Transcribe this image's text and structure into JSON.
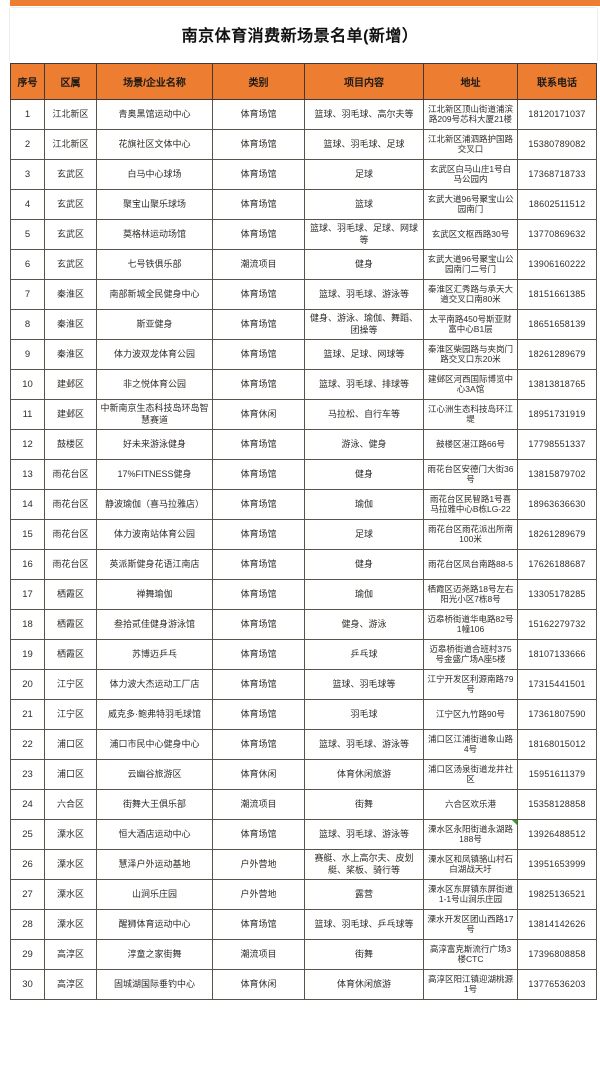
{
  "page_title": "南京体育消费新场景名单(新增）",
  "colors": {
    "header_bg": "#ED7D31",
    "border_dark": "#3f3a35",
    "border_light": "#5a534c",
    "text": "#2f2c2a",
    "marker_green": "#2e9e27"
  },
  "table": {
    "headers": [
      "序号",
      "区属",
      "场景/企业名称",
      "类别",
      "项目内容",
      "地址",
      "联系电话"
    ],
    "header_keys": [
      "no",
      "district",
      "name",
      "category",
      "content",
      "address",
      "phone"
    ],
    "green_marker_row": 25,
    "rows": [
      [
        "1",
        "江北新区",
        "青奥黑馆运动中心",
        "体育场馆",
        "篮球、羽毛球、高尔夫等",
        "江北新区顶山街道浦滨路209号芯科大厦21楼",
        "18120171037"
      ],
      [
        "2",
        "江北新区",
        "花旗社区文体中心",
        "体育场馆",
        "篮球、羽毛球、足球",
        "江北新区浦泗路护国路交叉口",
        "15380789082"
      ],
      [
        "3",
        "玄武区",
        "白马中心球场",
        "体育场馆",
        "足球",
        "玄武区白马山庄1号白马公园内",
        "17368718733"
      ],
      [
        "4",
        "玄武区",
        "聚宝山聚乐球场",
        "体育场馆",
        "篮球",
        "玄武大道96号聚宝山公园南门",
        "18602511512"
      ],
      [
        "5",
        "玄武区",
        "莫格林运动场馆",
        "体育场馆",
        "篮球、羽毛球、足球、网球等",
        "玄武区文枢西路30号",
        "13770869632"
      ],
      [
        "6",
        "玄武区",
        "七号铁俱乐部",
        "潮流项目",
        "健身",
        "玄武大道96号聚宝山公园南门二号门",
        "13906160222"
      ],
      [
        "7",
        "秦淮区",
        "南部新城全民健身中心",
        "体育场馆",
        "篮球、羽毛球、游泳等",
        "秦淮区汇秀路与承天大道交叉口南80米",
        "18151661385"
      ],
      [
        "8",
        "秦淮区",
        "斯亚健身",
        "体育场馆",
        "健身、游泳、瑜伽、舞蹈、团操等",
        "太平南路450号斯亚财富中心B1层",
        "18651658139"
      ],
      [
        "9",
        "秦淮区",
        "体力波双龙体育公园",
        "体育场馆",
        "篮球、足球、网球等",
        "秦淮区柴园路与夹岗门路交叉口东20米",
        "18261289679"
      ],
      [
        "10",
        "建邺区",
        "非之悦体育公园",
        "体育场馆",
        "篮球、羽毛球、排球等",
        "建邺区河西国际博览中心3A馆",
        "13813818765"
      ],
      [
        "11",
        "建邺区",
        "中新南京生态科技岛环岛智慧赛道",
        "体育休闲",
        "马拉松、自行车等",
        "江心洲生态科技岛环江堤",
        "18951731919"
      ],
      [
        "12",
        "鼓楼区",
        "好未来游泳健身",
        "体育场馆",
        "游泳、健身",
        "鼓楼区湛江路66号",
        "17798551337"
      ],
      [
        "13",
        "雨花台区",
        "17%FITNESS健身",
        "体育场馆",
        "健身",
        "雨花台区安德门大街36号",
        "13815879702"
      ],
      [
        "14",
        "雨花台区",
        "静波瑜伽（喜马拉雅店）",
        "体育场馆",
        "瑜伽",
        "雨花台区民智路1号喜马拉雅中心B栋LG-22",
        "18963636630"
      ],
      [
        "15",
        "雨花台区",
        "体力波南站体育公园",
        "体育场馆",
        "足球",
        "雨花台区雨花派出所南100米",
        "18261289679"
      ],
      [
        "16",
        "雨花台区",
        "英派斯健身花语江南店",
        "体育场馆",
        "健身",
        "雨花台区凤台南路88-5",
        "17626188687"
      ],
      [
        "17",
        "栖霞区",
        "禅舞瑜伽",
        "体育场馆",
        "瑜伽",
        "栖霞区迈尧路18号左右阳光小区7栋8号",
        "13305178285"
      ],
      [
        "18",
        "栖霞区",
        "叁拾贰佳健身游泳馆",
        "体育场馆",
        "健身、游泳",
        "迈皋桥街道华电路82号1幢106",
        "15162279732"
      ],
      [
        "19",
        "栖霞区",
        "苏博迈乒乓",
        "体育场馆",
        "乒乓球",
        "迈皋桥街道合班村375号金盛广场A座5楼",
        "18107133666"
      ],
      [
        "20",
        "江宁区",
        "体力波大杰运动工厂店",
        "体育场馆",
        "篮球、羽毛球等",
        "江宁开发区利源南路79号",
        "17315441501"
      ],
      [
        "21",
        "江宁区",
        "威克多·鲍弗特羽毛球馆",
        "体育场馆",
        "羽毛球",
        "江宁区九竹路90号",
        "17361807590"
      ],
      [
        "22",
        "浦口区",
        "浦口市民中心健身中心",
        "体育场馆",
        "篮球、羽毛球、游泳等",
        "浦口区江浦街道象山路4号",
        "18168015012"
      ],
      [
        "23",
        "浦口区",
        "云幽谷旅游区",
        "体育休闲",
        "体育休闲旅游",
        "浦口区汤泉街道龙井社区",
        "15951611379"
      ],
      [
        "24",
        "六合区",
        "街舞大王俱乐部",
        "潮流项目",
        "街舞",
        "六合区欢乐港",
        "15358128858"
      ],
      [
        "25",
        "溧水区",
        "恒大酒店运动中心",
        "体育场馆",
        "篮球、羽毛球、游泳等",
        "溧水区永阳街道永湖路188号",
        "13926488512"
      ],
      [
        "26",
        "溧水区",
        "慧泽户外运动基地",
        "户外营地",
        "赛艇、水上高尔夫、皮划艇、桨板、骑行等",
        "溧水区和凤镇骆山村石白湖战天圩",
        "13951653999"
      ],
      [
        "27",
        "溧水区",
        "山涧乐庄园",
        "户外营地",
        "露营",
        "溧水区东屏镇东屏街道1-1号山涧乐庄园",
        "19825136521"
      ],
      [
        "28",
        "溧水区",
        "醒狮体育运动中心",
        "体育场馆",
        "篮球、羽毛球、乒乓球等",
        "溧水开发区团山西路17号",
        "13814142626"
      ],
      [
        "29",
        "高淳区",
        "淳童之家街舞",
        "潮流项目",
        "街舞",
        "高淳富克斯流行广场3楼CTC",
        "17396808858"
      ],
      [
        "30",
        "高淳区",
        "固城湖国际垂钓中心",
        "体育休闲",
        "体育休闲旅游",
        "高淳区阳江镇迎湖桃源1号",
        "13776536203"
      ]
    ]
  }
}
